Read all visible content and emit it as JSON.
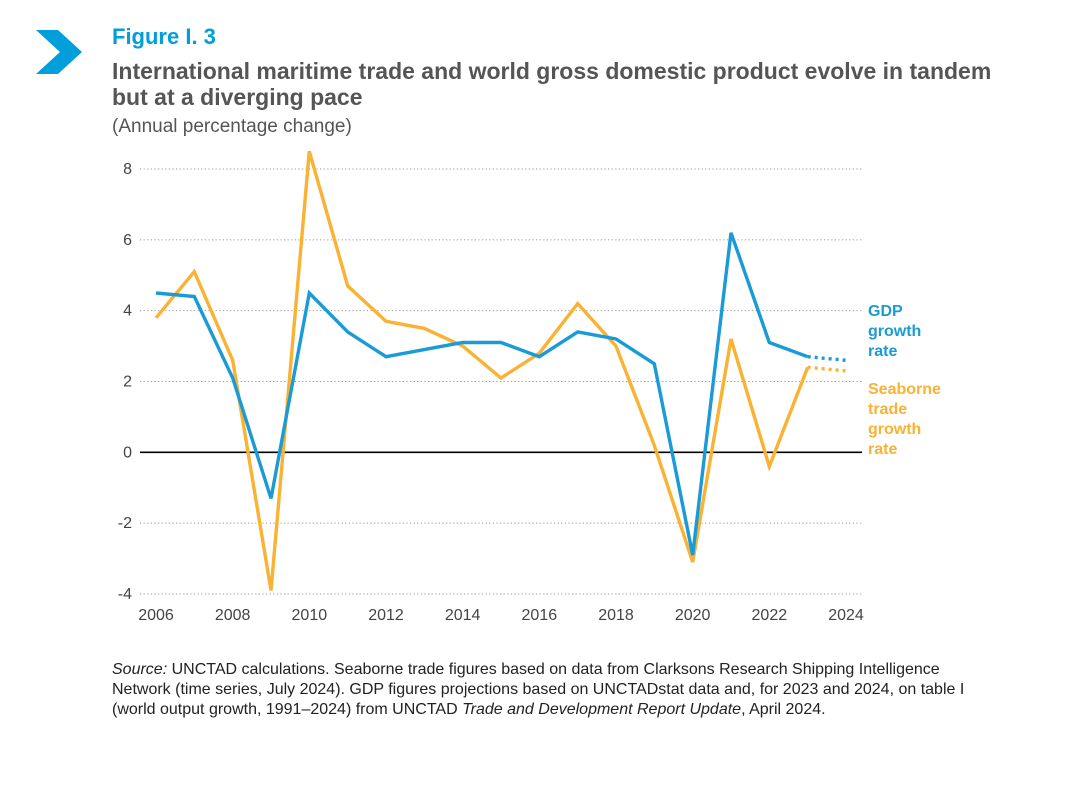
{
  "figure": {
    "label": "Figure I. 3",
    "title": "International maritime trade and world gross domestic product evolve in tandem but at a diverging pace",
    "subtitle": "(Annual percentage change)"
  },
  "colors": {
    "gdp": "#1a9bd7",
    "trade": "#f9b233",
    "accent": "#009edb",
    "text": "#555555"
  },
  "chart_data": {
    "type": "line",
    "x": [
      2006,
      2007,
      2008,
      2009,
      2010,
      2011,
      2012,
      2013,
      2014,
      2015,
      2016,
      2017,
      2018,
      2019,
      2020,
      2021,
      2022,
      2023,
      2024
    ],
    "x_ticks": [
      "2006",
      "2008",
      "2010",
      "2012",
      "2014",
      "2016",
      "2018",
      "2020",
      "2022",
      "2024"
    ],
    "y_ticks": [
      "8",
      "6",
      "4",
      "2",
      "0",
      "-2",
      "-4"
    ],
    "ylim": [
      -4,
      8.5
    ],
    "grid": true,
    "legend_placement": "right",
    "projection_years": [
      2023,
      2024
    ],
    "series": [
      {
        "name": "GDP growth rate",
        "legend_lines": [
          "GDP",
          "growth",
          "rate"
        ],
        "values": [
          4.5,
          4.4,
          2.1,
          -1.3,
          4.5,
          3.4,
          2.7,
          2.9,
          3.1,
          3.1,
          2.7,
          3.4,
          3.2,
          2.5,
          -2.9,
          6.2,
          3.1,
          2.7,
          2.6
        ]
      },
      {
        "name": "Seaborne trade growth rate",
        "legend_lines": [
          "Seaborne",
          "trade",
          "growth",
          "rate"
        ],
        "values": [
          3.8,
          5.1,
          2.6,
          -3.9,
          8.5,
          4.7,
          3.7,
          3.5,
          3.0,
          2.1,
          2.8,
          4.2,
          3.0,
          0.2,
          -3.1,
          3.2,
          -0.4,
          2.4,
          2.3
        ]
      }
    ]
  },
  "source": {
    "label": "Source:",
    "text_1": " UNCTAD calculations. Seaborne trade figures based on data from Clarksons Research Shipping Intelligence Network (time series, July 2024). GDP figures projections based on UNCTADstat data and, for 2023 and 2024, on table I (world output growth, 1991–2024) from UNCTAD ",
    "report": "Trade and Development Report Update",
    "text_2": ", April 2024."
  }
}
